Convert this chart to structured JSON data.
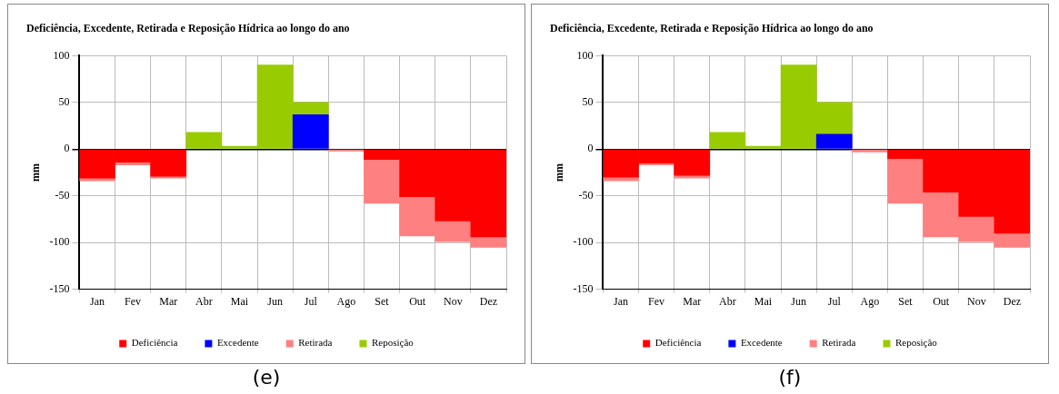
{
  "chart_data": [
    {
      "type": "bar",
      "title": "Deficiência, Excedente, Retirada e Reposição Hídrica ao longo do ano",
      "ylabel": "mm",
      "categories": [
        "Jan",
        "Fev",
        "Mar",
        "Abr",
        "Mai",
        "Jun",
        "Jul",
        "Ago",
        "Set",
        "Out",
        "Nov",
        "Dez"
      ],
      "stacked": true,
      "ylim": [
        -150,
        100
      ],
      "yticks": [
        -150,
        -100,
        -50,
        0,
        50,
        100
      ],
      "grid": true,
      "legend": "bottom",
      "annotations": [
        "(e)"
      ],
      "series": [
        {
          "name": "Deficiência",
          "color": "#ff0000",
          "values": [
            -31,
            -14,
            -29,
            null,
            null,
            null,
            null,
            null,
            -11,
            -51,
            -77,
            -94
          ]
        },
        {
          "name": "Excedente",
          "color": "#0000ff",
          "values": [
            null,
            null,
            null,
            null,
            null,
            null,
            37,
            null,
            null,
            null,
            null,
            null
          ]
        },
        {
          "name": "Retirada",
          "color": "#ff8080",
          "values": [
            -3,
            -3,
            -2,
            null,
            null,
            null,
            null,
            -2,
            -47,
            -42,
            -22,
            -11
          ]
        },
        {
          "name": "Reposição",
          "color": "#99cc00",
          "values": [
            null,
            null,
            null,
            18,
            3,
            90,
            13,
            null,
            null,
            null,
            null,
            null
          ]
        }
      ]
    },
    {
      "type": "bar",
      "title": "Deficiência, Excedente, Retirada e Reposição Hídrica ao longo do ano",
      "ylabel": "mm",
      "categories": [
        "Jan",
        "Fev",
        "Mar",
        "Abr",
        "Mai",
        "Jun",
        "Jul",
        "Ago",
        "Set",
        "Out",
        "Nov",
        "Dez"
      ],
      "stacked": true,
      "ylim": [
        -150,
        100
      ],
      "yticks": [
        -150,
        -100,
        -50,
        0,
        50,
        100
      ],
      "grid": true,
      "legend": "bottom",
      "annotations": [
        "(f)"
      ],
      "series": [
        {
          "name": "Deficiência",
          "color": "#ff0000",
          "values": [
            -30,
            -15,
            -28,
            null,
            null,
            null,
            null,
            null,
            -10,
            -46,
            -72,
            -90
          ]
        },
        {
          "name": "Excedente",
          "color": "#0000ff",
          "values": [
            null,
            null,
            null,
            null,
            null,
            null,
            16,
            null,
            null,
            null,
            null,
            null
          ]
        },
        {
          "name": "Retirada",
          "color": "#ff8080",
          "values": [
            -4,
            -2,
            -3,
            null,
            null,
            null,
            null,
            -3,
            -48,
            -48,
            -27,
            -15
          ]
        },
        {
          "name": "Reposição",
          "color": "#99cc00",
          "values": [
            null,
            null,
            null,
            18,
            3,
            90,
            34,
            null,
            null,
            null,
            null,
            null
          ]
        }
      ]
    }
  ]
}
